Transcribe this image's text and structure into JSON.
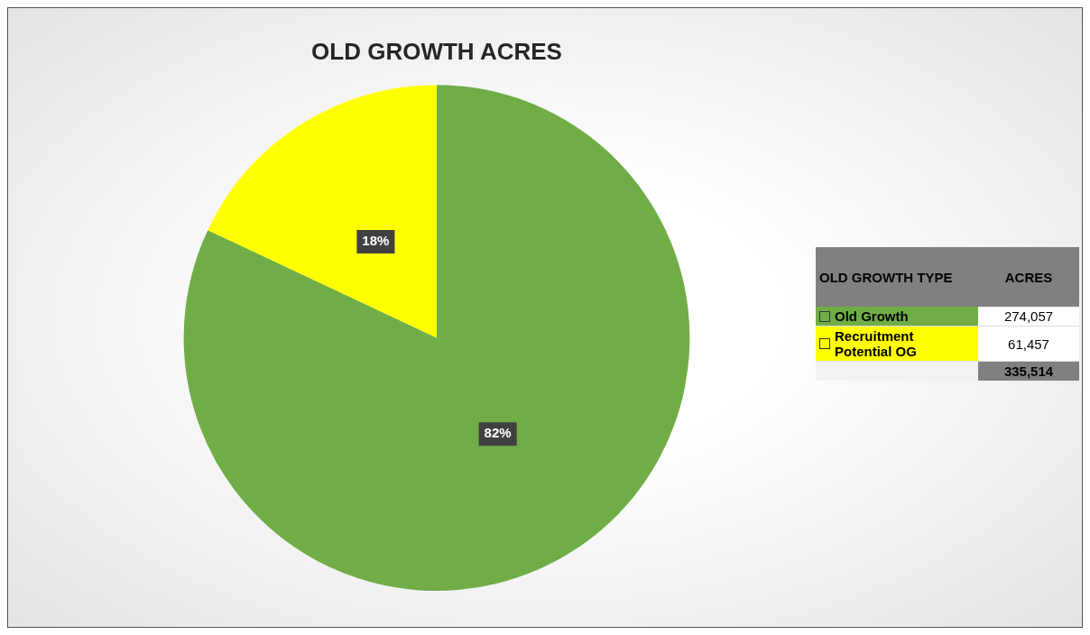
{
  "chart_data": {
    "type": "pie",
    "title": "OLD GROWTH ACRES",
    "legend_title": "OLD GROWTH TYPE",
    "categories": [
      "Old Growth",
      "Recruitment Potential OG"
    ],
    "values": [
      82,
      18
    ],
    "colors": [
      "#70ad47",
      "#ffff00"
    ],
    "value_labels": [
      "82%",
      "18%"
    ],
    "annotations": [
      "ACRES",
      "274,057",
      "61,457",
      "335,514"
    ],
    "legend": "right"
  }
}
